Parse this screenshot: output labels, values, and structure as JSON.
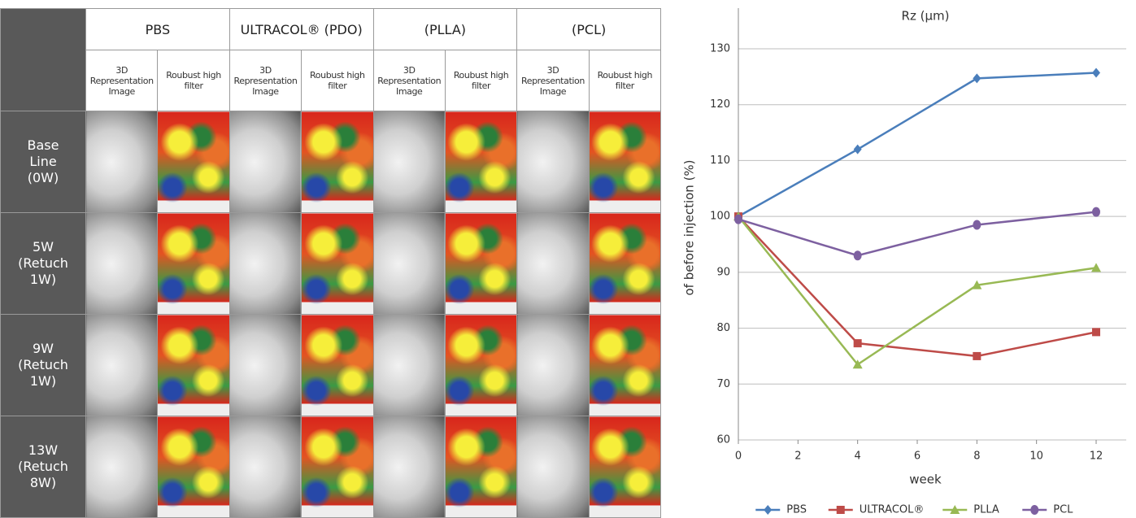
{
  "table": {
    "columns": [
      {
        "name": "PBS",
        "sub": [
          "3D Representation Image",
          "Roubust high filter"
        ]
      },
      {
        "name": "ULTRACOL® (PDO)",
        "sub": [
          "3D Representation Image",
          "Roubust high filter"
        ]
      },
      {
        "name": "(PLLA)",
        "sub": [
          "3D Representation Image",
          "Roubust high filter"
        ]
      },
      {
        "name": "(PCL)",
        "sub": [
          "3D Representation Image",
          "Roubust high filter"
        ]
      }
    ],
    "rows": [
      [
        "Base",
        "Line",
        "(0W)"
      ],
      [
        "5W",
        "(Retuch",
        "1W)"
      ],
      [
        "9W",
        "(Retuch",
        "1W)"
      ],
      [
        "13W",
        "(Retuch",
        "8W)"
      ]
    ]
  },
  "chart_data": {
    "type": "line",
    "title": "Rz (μm)",
    "x_label": "week",
    "y_label": "of before injection (%)",
    "x": [
      0,
      4,
      8,
      12
    ],
    "series": [
      {
        "name": "PBS",
        "color": "#4a7ebb",
        "marker": "diamond",
        "values": [
          100,
          112,
          124.7,
          125.7
        ]
      },
      {
        "name": "ULTRACOL®",
        "color": "#be4b48",
        "marker": "square",
        "values": [
          100,
          77.3,
          75,
          79.3
        ]
      },
      {
        "name": "PLLA",
        "color": "#98b954",
        "marker": "triangle",
        "values": [
          100,
          73.5,
          87.7,
          90.8
        ]
      },
      {
        "name": "PCL",
        "color": "#7d60a0",
        "marker": "circle",
        "values": [
          99.5,
          93,
          98.5,
          100.8
        ]
      }
    ],
    "xlim": [
      0,
      12
    ],
    "xticks": [
      0,
      2,
      4,
      6,
      8,
      10,
      12
    ],
    "ylim": [
      60,
      130
    ],
    "yticks": [
      60,
      70,
      80,
      90,
      100,
      110,
      120,
      130
    ],
    "grid": true,
    "legend": "bottom"
  }
}
